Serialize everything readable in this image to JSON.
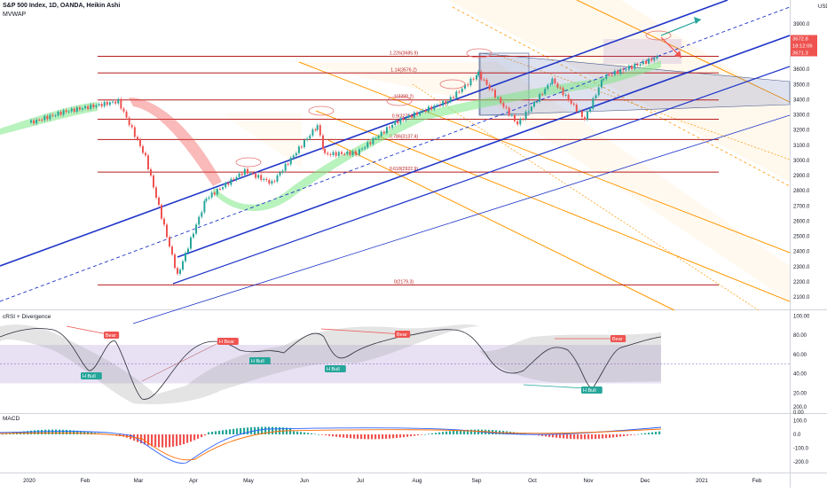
{
  "header": {
    "symbol_line": "S&P 500 Index, 1D, OANDA, Heikin Ashi",
    "indicator_1": "MVWAP"
  },
  "panes": {
    "price": {
      "currency": "USD",
      "y_ticks": [
        "3900.0",
        "3800.0",
        "3700.0",
        "3600.0",
        "3500.0",
        "3400.0",
        "3300.0",
        "3200.0",
        "3100.0",
        "3000.0",
        "2900.0",
        "2800.0",
        "2700.0",
        "2600.0",
        "2500.0",
        "2400.0",
        "2300.0",
        "2200.0",
        "2100.0"
      ],
      "last_price_tags": [
        {
          "text": "3672.8",
          "color": "#ef5350"
        },
        {
          "text": "18:12:06",
          "color": "#ef5350"
        },
        {
          "text": "3671.3",
          "color": "#ef5350"
        }
      ]
    },
    "crsi": {
      "label": "cRSI + Divergence",
      "y_ticks": [
        "100.00",
        "80.00",
        "60.00",
        "40.00",
        "20.00",
        "0.00"
      ]
    },
    "macd": {
      "label": "MACD",
      "y_ticks": [
        "200.0",
        "100.0",
        "0.0",
        "-100.0",
        "-200.0"
      ]
    }
  },
  "x_axis": {
    "labels": [
      "2020",
      "Feb",
      "Mar",
      "Apr",
      "May",
      "Jun",
      "Jul",
      "Aug",
      "Sep",
      "Oct",
      "Nov",
      "Dec",
      "2021",
      "Feb"
    ]
  },
  "fib_levels": [
    {
      "label": "1.226(3685.9)",
      "value": 3685.9
    },
    {
      "label": "1.14(3576.2)",
      "value": 3576.2
    },
    {
      "label": "1(3398.2)",
      "value": 3398.2
    },
    {
      "label": "0.9(3270.9)",
      "value": 3270.9
    },
    {
      "label": "0.786(3137.4)",
      "value": 3137.4
    },
    {
      "label": "0.618(2922.9)",
      "value": 2922.9
    },
    {
      "label": "0(2179.3)",
      "value": 2179.3
    }
  ],
  "divergence_tags": [
    {
      "text": "Bear",
      "color": "#ef5350"
    },
    {
      "text": "H Bear",
      "color": "#ef5350"
    },
    {
      "text": "H Bull",
      "color": "#26a69a"
    },
    {
      "text": "H Bull",
      "color": "#26a69a"
    },
    {
      "text": "H Bull",
      "color": "#26a69a"
    },
    {
      "text": "Bear",
      "color": "#ef5350"
    },
    {
      "text": "Bear",
      "color": "#ef5350"
    },
    {
      "text": "H Bull",
      "color": "#26a69a"
    }
  ],
  "colors": {
    "bull": "#26a69a",
    "bear": "#ef5350",
    "channel": "#1f35c8",
    "fib": "#b71c1c",
    "pitchfork": "#ff9800",
    "axis_text": "#131722"
  },
  "chart_data": {
    "type": "candlestick",
    "price_axis": {
      "ylim": [
        2060,
        3950
      ],
      "unit": "USD"
    },
    "approx_close_series": [
      {
        "date": "2020-01-02",
        "close": 3250
      },
      {
        "date": "2020-01-20",
        "close": 3320
      },
      {
        "date": "2020-02-19",
        "close": 3390
      },
      {
        "date": "2020-03-05",
        "close": 3020
      },
      {
        "date": "2020-03-23",
        "close": 2240
      },
      {
        "date": "2020-04-08",
        "close": 2750
      },
      {
        "date": "2020-04-29",
        "close": 2930
      },
      {
        "date": "2020-05-14",
        "close": 2850
      },
      {
        "date": "2020-06-08",
        "close": 3230
      },
      {
        "date": "2020-06-12",
        "close": 3040
      },
      {
        "date": "2020-06-29",
        "close": 3050
      },
      {
        "date": "2020-07-20",
        "close": 3250
      },
      {
        "date": "2020-08-17",
        "close": 3390
      },
      {
        "date": "2020-09-02",
        "close": 3570
      },
      {
        "date": "2020-09-23",
        "close": 3240
      },
      {
        "date": "2020-10-12",
        "close": 3530
      },
      {
        "date": "2020-10-30",
        "close": 3270
      },
      {
        "date": "2020-11-09",
        "close": 3550
      },
      {
        "date": "2020-12-08",
        "close": 3680
      }
    ],
    "crsi_axis": {
      "ylim": [
        0,
        100
      ],
      "band": [
        30,
        70
      ]
    },
    "macd_axis": {
      "ylim": [
        -230,
        120
      ]
    }
  }
}
